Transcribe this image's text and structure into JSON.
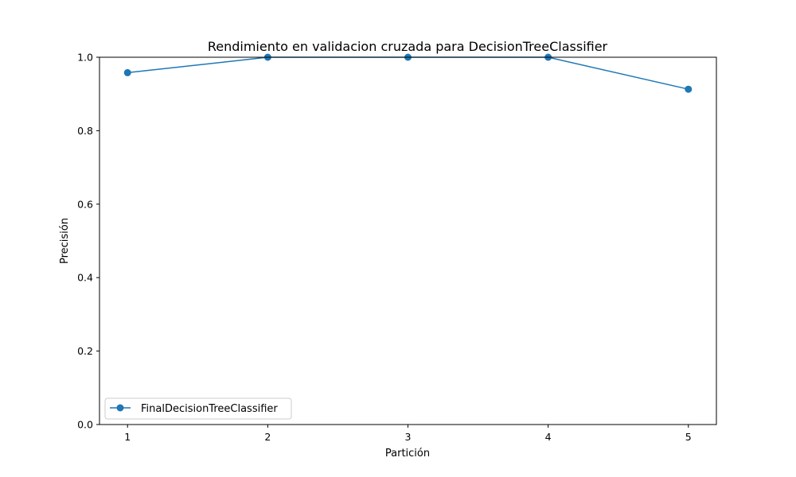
{
  "chart_data": {
    "type": "line",
    "title": "Rendimiento en validacion cruzada para DecisionTreeClassifier",
    "xlabel": "Partición",
    "ylabel": "Precisión",
    "x": [
      1,
      2,
      3,
      4,
      5
    ],
    "x_tick_labels": [
      "1",
      "2",
      "3",
      "4",
      "5"
    ],
    "y_tick_labels": [
      "0.0",
      "0.2",
      "0.4",
      "0.6",
      "0.8",
      "1.0"
    ],
    "y_ticks": [
      0.0,
      0.2,
      0.4,
      0.6,
      0.8,
      1.0
    ],
    "ylim": [
      0.0,
      1.0
    ],
    "xlim": [
      0.8,
      5.2
    ],
    "grid": false,
    "legend_position": "lower-left",
    "series": [
      {
        "name": "FinalDecisionTreeClassifier",
        "values": [
          0.958,
          1.0,
          1.0,
          1.0,
          0.913
        ],
        "color": "#1f77b4",
        "marker": "circle"
      }
    ]
  }
}
